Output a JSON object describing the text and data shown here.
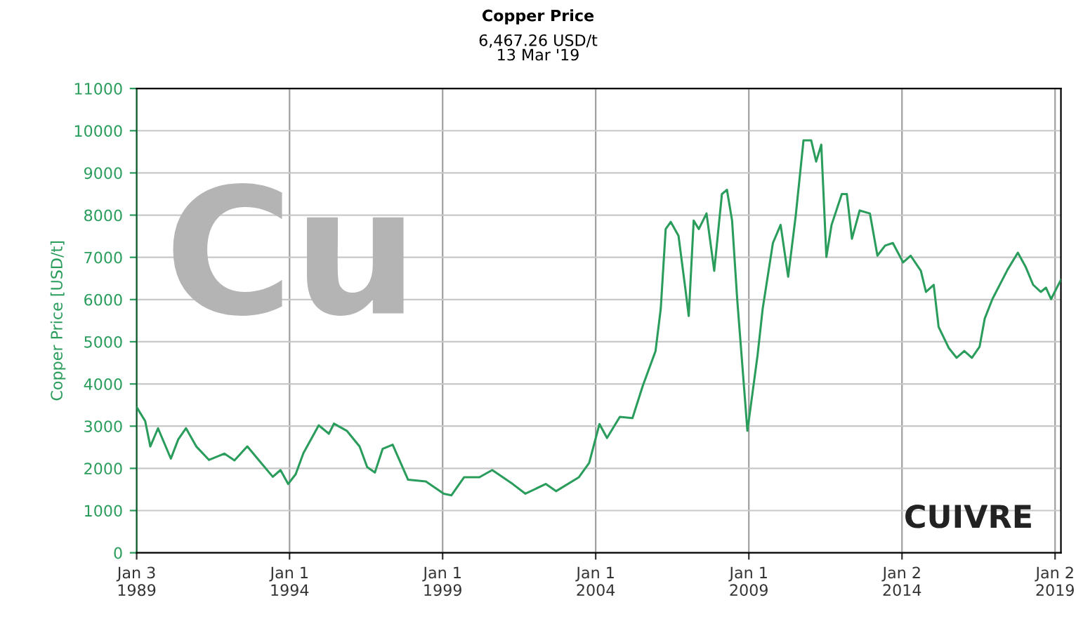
{
  "chart_data": {
    "type": "line",
    "title": "Copper Price",
    "subtitle": "6,467.26 USD/t\n13 Mar '19",
    "ylabel": "Copper Price [USD/t]",
    "annotations": [
      "Cu",
      "CUIVRE"
    ],
    "x": [
      "1989-01-03",
      "1989-04",
      "1989-06",
      "1989-09",
      "1990-02",
      "1990-05",
      "1990-08",
      "1990-12",
      "1991-05",
      "1991-11",
      "1992-03",
      "1992-08",
      "1992-12",
      "1993-06",
      "1993-09",
      "1993-12",
      "1994-03",
      "1994-06",
      "1994-12",
      "1995-04",
      "1995-06",
      "1995-11",
      "1996-04",
      "1996-07",
      "1996-10",
      "1997-01",
      "1997-05",
      "1997-11",
      "1998-06",
      "1999-01",
      "1999-04",
      "1999-09",
      "2000-03",
      "2000-08",
      "2001-04",
      "2001-09",
      "2002-05",
      "2002-09",
      "2003-06",
      "2003-10",
      "2004-02",
      "2004-05",
      "2004-10",
      "2005-03",
      "2005-07",
      "2005-12",
      "2006-02",
      "2006-04",
      "2006-06",
      "2006-09",
      "2006-12",
      "2007-01",
      "2007-03",
      "2007-05",
      "2007-08",
      "2007-11",
      "2008-02",
      "2008-04",
      "2008-06",
      "2008-08",
      "2008-12",
      "2009-04",
      "2009-06",
      "2009-10",
      "2010-01",
      "2010-04",
      "2010-07",
      "2010-10",
      "2011-01",
      "2011-03",
      "2011-05",
      "2011-07",
      "2011-09",
      "2012-01",
      "2012-03",
      "2012-05",
      "2012-08",
      "2012-12",
      "2013-03",
      "2013-06",
      "2013-09",
      "2014-01",
      "2014-04",
      "2014-08",
      "2014-10",
      "2015-01",
      "2015-03",
      "2015-07",
      "2015-10",
      "2016-01",
      "2016-04",
      "2016-07",
      "2016-09",
      "2016-12",
      "2017-06",
      "2017-10",
      "2018-01",
      "2018-04",
      "2018-07",
      "2018-09",
      "2018-11",
      "2019-03-13"
    ],
    "series": [
      {
        "color": "#2a9d5c",
        "values": [
          3450,
          3120,
          2520,
          2950,
          2230,
          2690,
          2950,
          2520,
          2200,
          2350,
          2190,
          2520,
          2230,
          1800,
          1960,
          1630,
          1860,
          2360,
          3020,
          2820,
          3060,
          2890,
          2520,
          2030,
          1900,
          2460,
          2560,
          1730,
          1690,
          1400,
          1360,
          1790,
          1790,
          1960,
          1630,
          1400,
          1630,
          1460,
          1790,
          2130,
          3050,
          2720,
          3220,
          3190,
          3950,
          4780,
          5780,
          7670,
          7840,
          7510,
          6110,
          5610,
          7870,
          7670,
          8040,
          6680,
          8500,
          8600,
          7870,
          6010,
          2890,
          4680,
          5780,
          7340,
          7770,
          6540,
          8000,
          9770,
          9770,
          9270,
          9670,
          7010,
          7770,
          8500,
          8500,
          7440,
          8110,
          8040,
          7040,
          7280,
          7340,
          6880,
          7040,
          6680,
          6180,
          6350,
          5350,
          4850,
          4620,
          4780,
          4620,
          4880,
          5550,
          6010,
          6710,
          7110,
          6780,
          6350,
          6180,
          6280,
          6010,
          6470
        ]
      }
    ],
    "xlim": [
      "1989-01-03",
      "2019-03-13"
    ],
    "xticks": [
      {
        "value": "1989-01-03",
        "label": "Jan 3\n1989"
      },
      {
        "value": "1994-01-01",
        "label": "Jan 1\n1994"
      },
      {
        "value": "1999-01-01",
        "label": "Jan 1\n1999"
      },
      {
        "value": "2004-01-01",
        "label": "Jan 1\n2004"
      },
      {
        "value": "2009-01-01",
        "label": "Jan 1\n2009"
      },
      {
        "value": "2014-01-02",
        "label": "Jan 2\n2014"
      },
      {
        "value": "2019-01-02",
        "label": "Jan 2\n2019"
      }
    ],
    "ylim": [
      0,
      11000
    ],
    "yticks": [
      0,
      1000,
      2000,
      3000,
      4000,
      5000,
      6000,
      7000,
      8000,
      9000,
      10000,
      11000
    ],
    "grid": true,
    "marker": "none",
    "line_style": "solid"
  }
}
